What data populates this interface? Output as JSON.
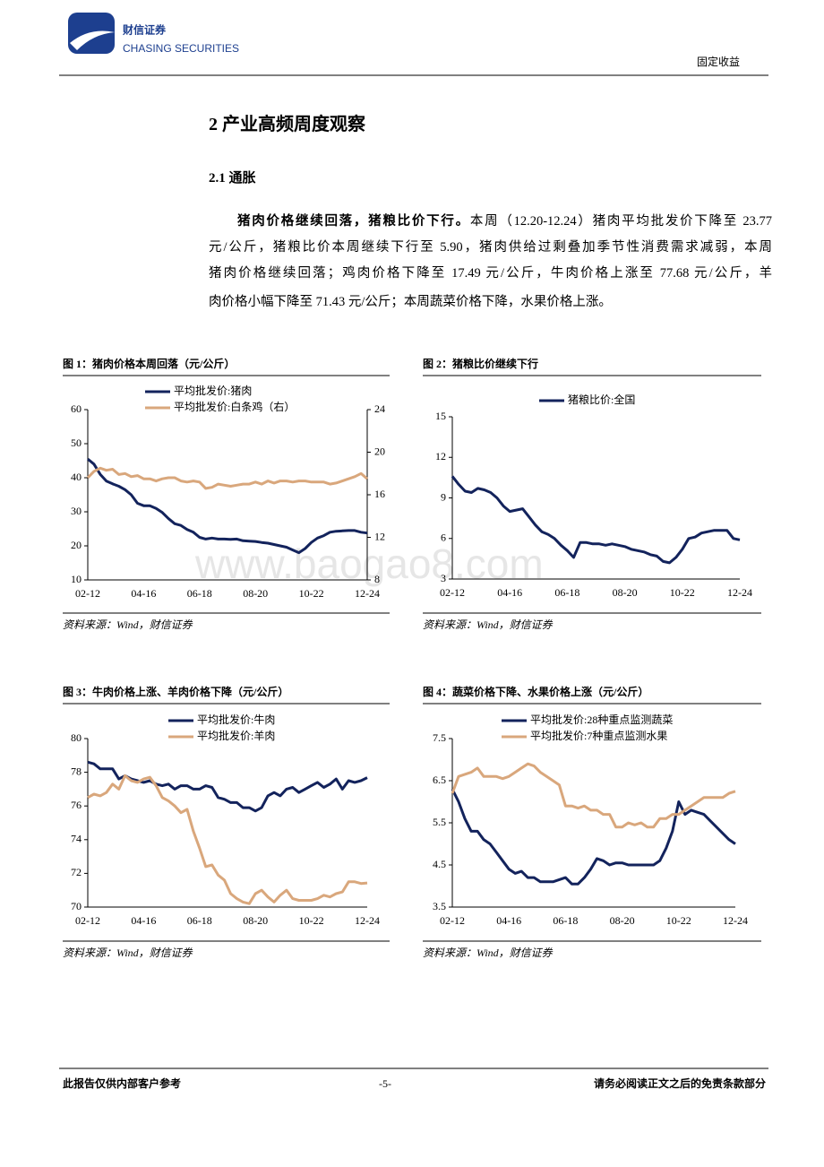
{
  "header": {
    "brand": "财信证券",
    "brand_en": "CHASING SECURITIES",
    "category": "固定收益"
  },
  "section": {
    "title": "2 产业高频周度观察",
    "subtitle": "2.1 通胀",
    "lead": "猪肉价格继续回落，猪粮比价下行。",
    "lines": [
      "本周（12.20-12.24）猪肉平均批发价下降至 23.77",
      "元/公斤，猪粮比价本周继续下行至 5.90，猪肉供给过剩叠加季节性消费需求减弱，本周",
      "猪肉价格继续回落；鸡肉价格下降至 17.49 元/公斤，牛肉价格上涨至 77.68 元/公斤，羊",
      "肉价格小幅下降至 71.43 元/公斤；本周蔬菜价格下降，水果价格上涨。"
    ]
  },
  "watermark": "www.baogao8.com",
  "chart_data": [
    {
      "type": "line",
      "title": "图 1：猪肉价格本周回落（元/公斤）",
      "source": "资料来源：Wind，财信证券",
      "categories": [
        "02-12",
        null,
        null,
        null,
        null,
        null,
        null,
        null,
        null,
        "04-16",
        null,
        null,
        null,
        null,
        null,
        null,
        null,
        null,
        "06-18",
        null,
        null,
        null,
        null,
        null,
        null,
        null,
        null,
        "08-20",
        null,
        null,
        null,
        null,
        null,
        null,
        null,
        null,
        "10-22",
        null,
        null,
        null,
        null,
        null,
        null,
        null,
        null,
        "12-24"
      ],
      "series": [
        {
          "name": "平均批发价:猪肉",
          "color": "#13235c",
          "values": [
            45.5,
            44,
            41,
            39,
            38.2,
            37.5,
            36.5,
            35,
            32.5,
            31.8,
            31.8,
            31,
            29.8,
            28,
            26.5,
            26,
            24.8,
            24,
            22.5,
            22,
            22.3,
            22,
            22,
            21.9,
            22,
            21.5,
            21.4,
            21.3,
            21,
            20.8,
            20.4,
            20,
            19.6,
            18.8,
            18,
            19.2,
            21,
            22.3,
            23,
            24,
            24.3,
            24.4,
            24.5,
            24.5,
            24,
            23.77
          ]
        },
        {
          "name": "平均批发价:白条鸡（右）",
          "color": "#d9a77c",
          "axis": "y2",
          "values": [
            17.6,
            18.2,
            18.5,
            18.3,
            18.4,
            17.9,
            18,
            17.7,
            17.8,
            17.5,
            17.5,
            17.3,
            17.5,
            17.6,
            17.6,
            17.3,
            17.2,
            17.3,
            17.2,
            16.6,
            16.7,
            17,
            16.9,
            16.8,
            16.9,
            17,
            17,
            17.2,
            17,
            17.3,
            17.1,
            17.3,
            17.3,
            17.2,
            17.3,
            17.3,
            17.2,
            17.2,
            17.2,
            17,
            17.1,
            17.3,
            17.5,
            17.7,
            18,
            17.49
          ]
        }
      ],
      "ylim": [
        10,
        60
      ],
      "yticks": [
        10,
        20,
        30,
        40,
        50,
        60
      ],
      "y2lim": [
        8,
        24
      ],
      "y2ticks": [
        8,
        12,
        16,
        20,
        24
      ]
    },
    {
      "type": "line",
      "title": "图 2：猪粮比价继续下行",
      "source": "资料来源：Wind，财信证券",
      "categories": [
        "02-12",
        null,
        null,
        null,
        null,
        null,
        null,
        null,
        null,
        "04-16",
        null,
        null,
        null,
        null,
        null,
        null,
        null,
        null,
        "06-18",
        null,
        null,
        null,
        null,
        null,
        null,
        null,
        null,
        "08-20",
        null,
        null,
        null,
        null,
        null,
        null,
        null,
        null,
        "10-22",
        null,
        null,
        null,
        null,
        null,
        null,
        null,
        null,
        "12-24"
      ],
      "series": [
        {
          "name": "猪粮比价:全国",
          "color": "#13235c",
          "values": [
            10.6,
            10,
            9.5,
            9.4,
            9.7,
            9.6,
            9.4,
            9,
            8.4,
            8,
            8.1,
            8.2,
            7.6,
            7,
            6.5,
            6.3,
            6,
            5.5,
            5.1,
            4.6,
            5.7,
            5.7,
            5.6,
            5.6,
            5.5,
            5.6,
            5.5,
            5.4,
            5.2,
            5.1,
            5,
            4.8,
            4.7,
            4.3,
            4.2,
            4.6,
            5.2,
            6,
            6.1,
            6.4,
            6.5,
            6.6,
            6.6,
            6.6,
            6,
            5.9
          ]
        }
      ],
      "ylim": [
        3,
        15
      ],
      "yticks": [
        3,
        6,
        9,
        12,
        15
      ]
    },
    {
      "type": "line",
      "title": "图 3：牛肉价格上涨、羊肉价格下降（元/公斤）",
      "source": "资料来源：Wind，财信证券",
      "categories": [
        "02-12",
        null,
        null,
        null,
        null,
        null,
        null,
        null,
        null,
        "04-16",
        null,
        null,
        null,
        null,
        null,
        null,
        null,
        null,
        "06-18",
        null,
        null,
        null,
        null,
        null,
        null,
        null,
        null,
        "08-20",
        null,
        null,
        null,
        null,
        null,
        null,
        null,
        null,
        "10-22",
        null,
        null,
        null,
        null,
        null,
        null,
        null,
        null,
        "12-24"
      ],
      "series": [
        {
          "name": "平均批发价:牛肉",
          "color": "#13235c",
          "values": [
            78.6,
            78.5,
            78.2,
            78.2,
            78.2,
            77.6,
            77.8,
            77.6,
            77.5,
            77.4,
            77.5,
            77.3,
            77.2,
            77.3,
            77,
            77.2,
            77.2,
            77,
            77,
            77.2,
            77.1,
            76.5,
            76.4,
            76.2,
            76.2,
            75.9,
            75.9,
            75.7,
            75.9,
            76.6,
            76.8,
            76.6,
            77,
            77.1,
            76.8,
            77,
            77.2,
            77.4,
            77.1,
            77.3,
            77.6,
            77,
            77.5,
            77.4,
            77.5,
            77.68
          ]
        },
        {
          "name": "平均批发价:羊肉",
          "color": "#d9a77c",
          "values": [
            76.5,
            76.7,
            76.6,
            76.8,
            77.3,
            77,
            77.8,
            77.5,
            77.4,
            77.6,
            77.7,
            77.2,
            76.5,
            76.3,
            76,
            75.6,
            75.8,
            74.5,
            73.5,
            72.4,
            72.5,
            71.9,
            71.6,
            70.8,
            70.5,
            70.3,
            70.2,
            70.8,
            71,
            70.6,
            70.3,
            70.7,
            71,
            70.5,
            70.4,
            70.4,
            70.4,
            70.5,
            70.7,
            70.6,
            70.8,
            70.9,
            71.5,
            71.5,
            71.4,
            71.43
          ]
        }
      ],
      "ylim": [
        70,
        80
      ],
      "yticks": [
        70,
        72,
        74,
        76,
        78,
        80
      ]
    },
    {
      "type": "line",
      "title": "图 4：蔬菜价格下降、水果价格上涨（元/公斤）",
      "source": "资料来源：Wind，财信证券",
      "categories": [
        "02-12",
        null,
        null,
        null,
        null,
        null,
        null,
        null,
        null,
        "04-16",
        null,
        null,
        null,
        null,
        null,
        null,
        null,
        null,
        "06-18",
        null,
        null,
        null,
        null,
        null,
        null,
        null,
        null,
        "08-20",
        null,
        null,
        null,
        null,
        null,
        null,
        null,
        null,
        "10-22",
        null,
        null,
        null,
        null,
        null,
        null,
        null,
        null,
        "12-24"
      ],
      "series": [
        {
          "name": "平均批发价:28种重点监测蔬菜",
          "color": "#13235c",
          "values": [
            6.3,
            6,
            5.6,
            5.3,
            5.3,
            5.1,
            5,
            4.8,
            4.6,
            4.4,
            4.3,
            4.35,
            4.2,
            4.2,
            4.1,
            4.1,
            4.1,
            4.15,
            4.2,
            4.05,
            4.05,
            4.2,
            4.4,
            4.65,
            4.6,
            4.5,
            4.55,
            4.55,
            4.5,
            4.5,
            4.5,
            4.5,
            4.5,
            4.6,
            4.9,
            5.3,
            6,
            5.7,
            5.8,
            5.75,
            5.7,
            5.55,
            5.4,
            5.25,
            5.1,
            5
          ]
        },
        {
          "name": "平均批发价:7种重点监测水果",
          "color": "#d9a77c",
          "values": [
            6.2,
            6.6,
            6.65,
            6.7,
            6.8,
            6.6,
            6.6,
            6.6,
            6.55,
            6.6,
            6.7,
            6.8,
            6.9,
            6.85,
            6.7,
            6.6,
            6.5,
            6.4,
            5.9,
            5.9,
            5.85,
            5.9,
            5.8,
            5.8,
            5.7,
            5.7,
            5.4,
            5.4,
            5.5,
            5.45,
            5.5,
            5.4,
            5.4,
            5.6,
            5.6,
            5.7,
            5.7,
            5.8,
            5.9,
            6,
            6.1,
            6.1,
            6.1,
            6.1,
            6.2,
            6.25
          ]
        }
      ],
      "ylim": [
        3.5,
        7.5
      ],
      "yticks": [
        3.5,
        4.5,
        5.5,
        6.5,
        7.5
      ]
    }
  ],
  "footer": {
    "left": "此报告仅供内部客户参考",
    "center": "-5-",
    "right": "请务必阅读正文之后的免责条款部分"
  }
}
